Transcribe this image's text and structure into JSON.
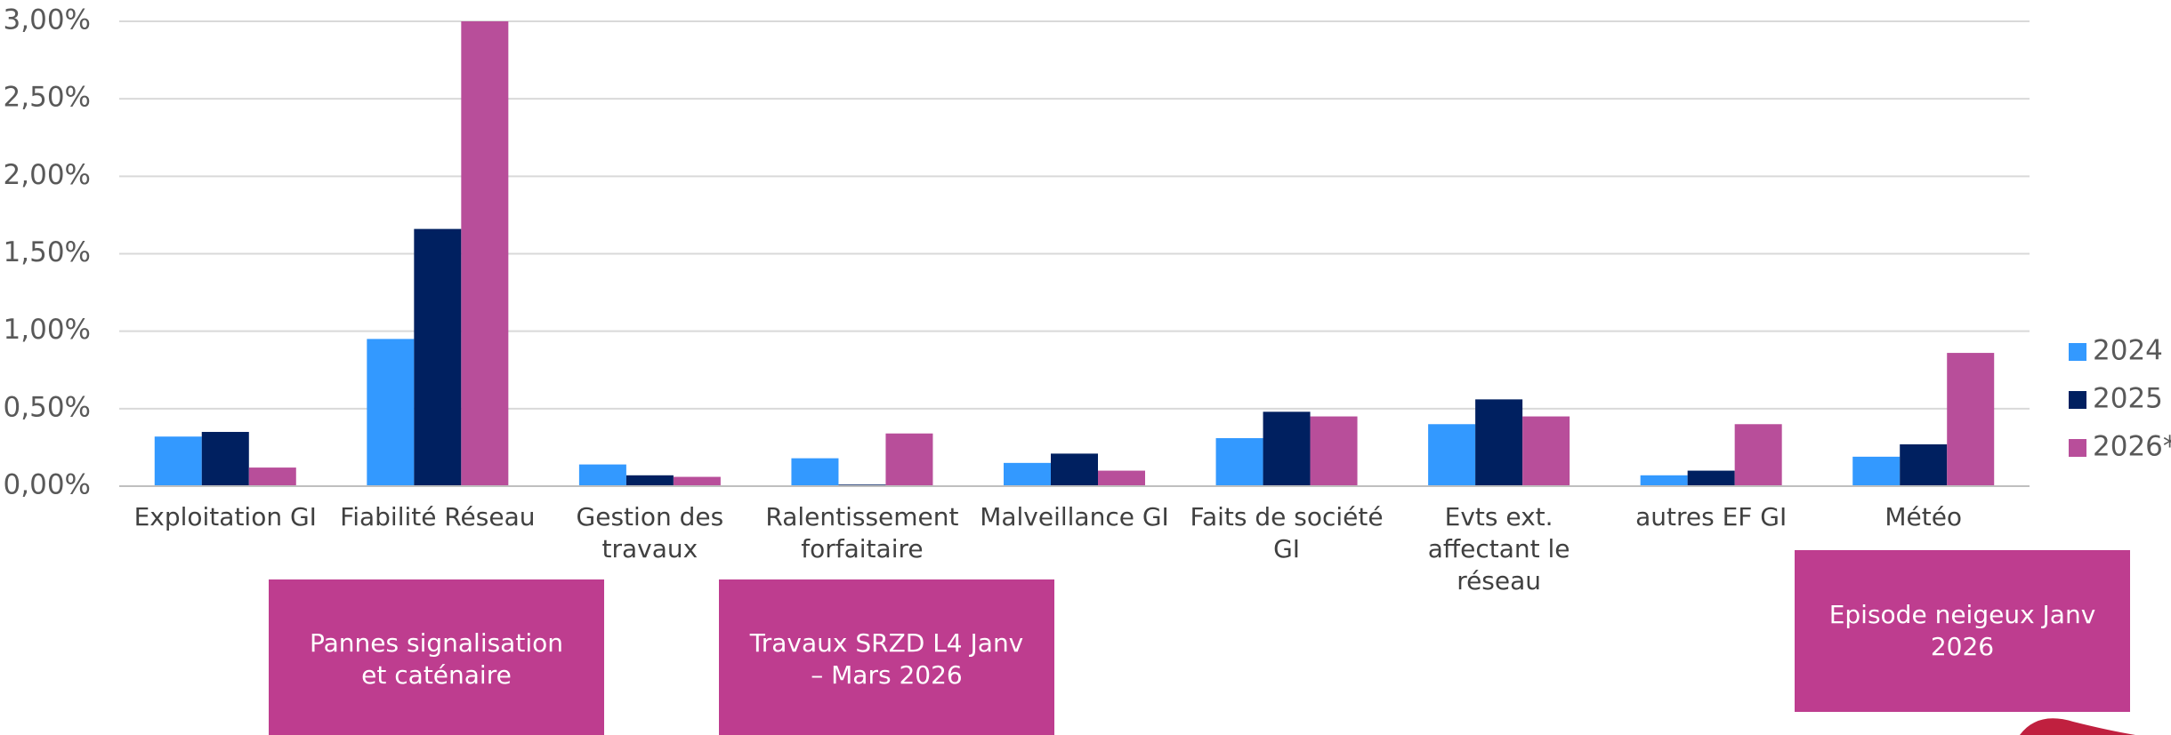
{
  "chart_data": {
    "type": "bar",
    "categories": [
      "Exploitation GI",
      "Fiabilité Réseau",
      "Gestion des travaux",
      "Ralentissement forfaitaire",
      "Malveillance GI",
      "Faits de société GI",
      "Evts ext. affectant le réseau",
      "autres EF GI",
      "Météo"
    ],
    "series": [
      {
        "name": "2024",
        "color": "#3399ff",
        "values": [
          0.32,
          0.95,
          0.14,
          0.18,
          0.15,
          0.31,
          0.4,
          0.07,
          0.19
        ]
      },
      {
        "name": "2025",
        "color": "#002060",
        "values": [
          0.35,
          1.66,
          0.07,
          0.01,
          0.21,
          0.48,
          0.56,
          0.1,
          0.27
        ]
      },
      {
        "name": "2026*",
        "color": "#b84e9a",
        "values": [
          0.12,
          3.0,
          0.06,
          0.34,
          0.1,
          0.45,
          0.45,
          0.4,
          0.86
        ]
      }
    ],
    "ylim": [
      0,
      3
    ],
    "yticks": [
      {
        "value": 0,
        "label": "0,00%"
      },
      {
        "value": 0.5,
        "label": "0,50%"
      },
      {
        "value": 1,
        "label": "1,00%"
      },
      {
        "value": 1.5,
        "label": "1,50%"
      },
      {
        "value": 2,
        "label": "2,00%"
      },
      {
        "value": 2.5,
        "label": "2,50%"
      },
      {
        "value": 3,
        "label": "3,00%"
      }
    ],
    "grid": true,
    "legend": "right",
    "annotations": [
      "Pannes signalisation et caténaire",
      "Travaux SRZD L4 Janv – Mars 2026",
      "Episode neigeux Janv 2026"
    ]
  }
}
